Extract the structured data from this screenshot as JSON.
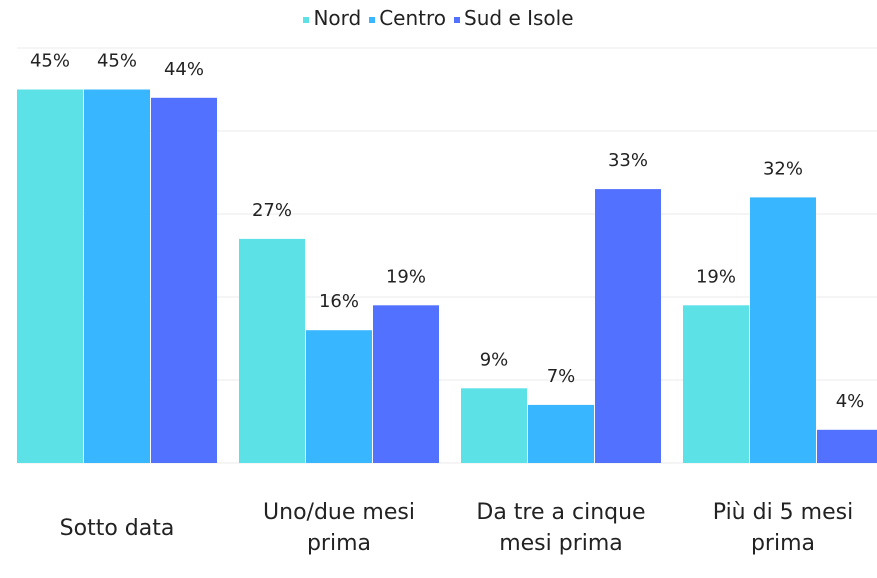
{
  "chart_data": {
    "type": "bar",
    "categories": [
      "Sotto data",
      "Uno/due mesi prima",
      "Da tre a cinque mesi prima",
      "Più di 5 mesi prima"
    ],
    "series": [
      {
        "name": "Nord",
        "color": "#5ce1e6",
        "values": [
          45,
          27,
          9,
          19
        ],
        "value_labels": [
          "45%",
          "27%",
          "9%",
          "19%"
        ]
      },
      {
        "name": "Centro",
        "color": "#38b6ff",
        "values": [
          45,
          16,
          7,
          32
        ],
        "value_labels": [
          "45%",
          "16%",
          "7%",
          "32%"
        ]
      },
      {
        "name": "Sud e Isole",
        "color": "#5271ff",
        "values": [
          44,
          19,
          33,
          4
        ],
        "value_labels": [
          "44%",
          "19%",
          "33%",
          "4%"
        ]
      }
    ],
    "ylim": [
      0,
      50
    ],
    "yticks": [
      0,
      10,
      20,
      30,
      40,
      50
    ],
    "grid": true,
    "legend": "top"
  }
}
